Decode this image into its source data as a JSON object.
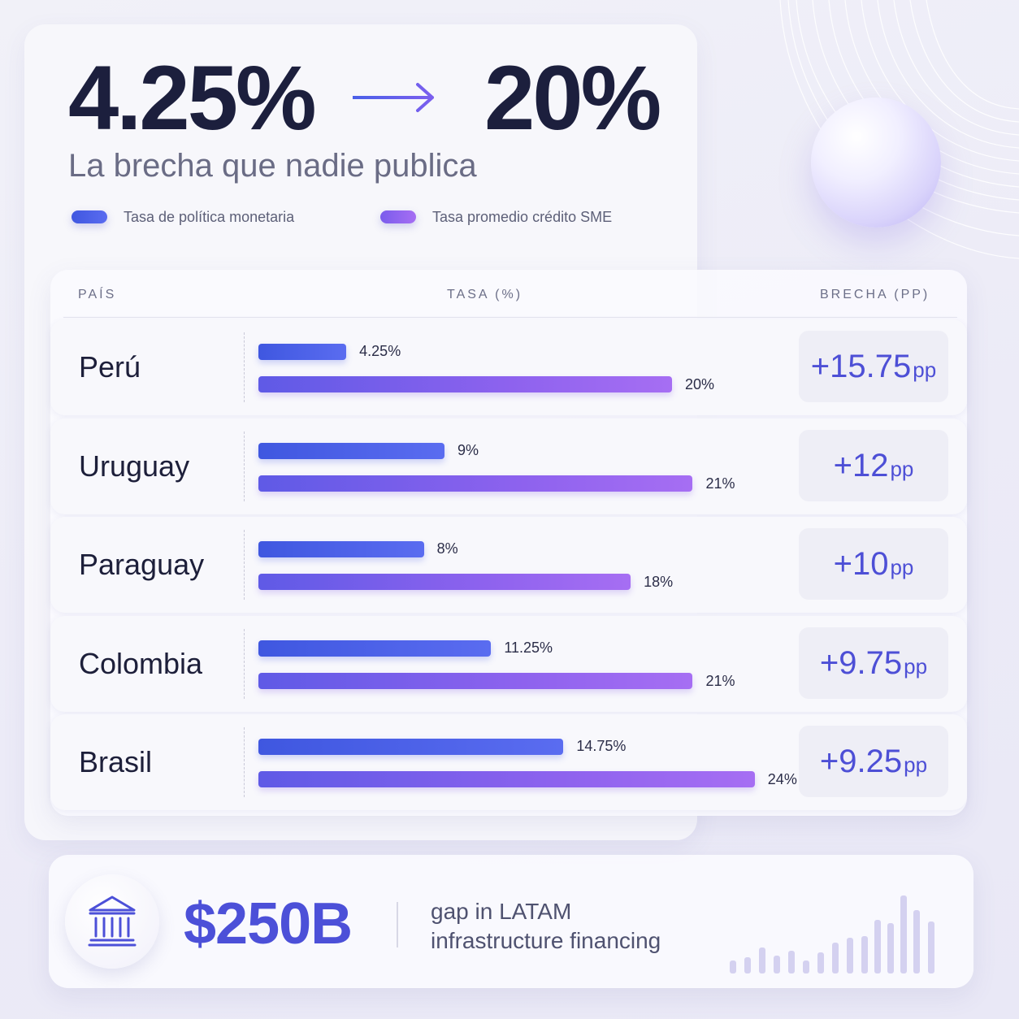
{
  "hero": {
    "from_value": "4.25%",
    "to_value": "20%",
    "subtitle": "La brecha que nadie publica"
  },
  "legend": [
    {
      "label": "Tasa de política monetaria",
      "color": "#4a60e8"
    },
    {
      "label": "Tasa promedio crédito SME",
      "color": "#8b63ee"
    }
  ],
  "table": {
    "headers": {
      "country": "PAÍS",
      "rate": "TASA (%)",
      "gap": "BRECHA (PP)"
    }
  },
  "chart_data": {
    "type": "bar",
    "categories": [
      "Perú",
      "Uruguay",
      "Paraguay",
      "Colombia",
      "Brasil"
    ],
    "series": [
      {
        "name": "Tasa de política monetaria",
        "values": [
          4.25,
          9,
          8,
          11.25,
          14.75
        ]
      },
      {
        "name": "Tasa promedio crédito SME",
        "values": [
          20,
          21,
          18,
          21,
          24
        ]
      }
    ],
    "data_labels": {
      "policy": [
        "4.25%",
        "9%",
        "8%",
        "11.25%",
        "14.75%"
      ],
      "sme": [
        "20%",
        "21%",
        "18%",
        "21%",
        "24%"
      ]
    },
    "gaps": [
      "+15.75",
      "+12",
      "+10",
      "+9.75",
      "+9.25"
    ],
    "gap_unit": "pp",
    "xlim": [
      0,
      24
    ],
    "colors": {
      "policy": "#4a60e8",
      "sme": "#8b63ee"
    }
  },
  "footer": {
    "stat": "$250B",
    "caption_line1": "gap in LATAM",
    "caption_line2": "infrastructure financing",
    "icon": "bank-icon",
    "accent": "#4c50d8"
  }
}
